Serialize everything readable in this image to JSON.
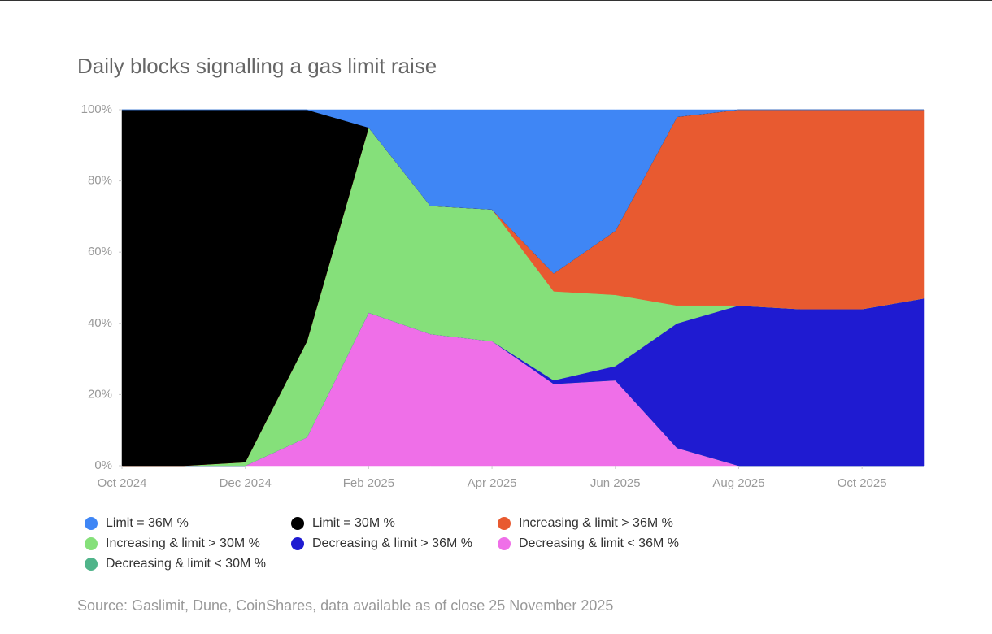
{
  "chart_data": {
    "type": "stacked_area",
    "title": "Daily blocks signalling a gas limit raise",
    "source": "Source: Gaslimit, Dune, CoinShares, data available as of close 25 November 2025",
    "x": [
      "2024-10",
      "2024-11",
      "2024-12",
      "2025-01",
      "2025-02",
      "2025-03",
      "2025-04",
      "2025-05",
      "2025-06",
      "2025-07",
      "2025-08",
      "2025-09",
      "2025-10",
      "2025-11"
    ],
    "xlim": [
      "2024-10",
      "2025-11"
    ],
    "xticks": [
      {
        "value": "2024-10",
        "label": "Oct 2024"
      },
      {
        "value": "2024-12",
        "label": "Dec 2024"
      },
      {
        "value": "2025-02",
        "label": "Feb 2025"
      },
      {
        "value": "2025-04",
        "label": "Apr 2025"
      },
      {
        "value": "2025-06",
        "label": "Jun 2025"
      },
      {
        "value": "2025-08",
        "label": "Aug 2025"
      },
      {
        "value": "2025-10",
        "label": "Oct 2025"
      }
    ],
    "ylim": [
      0,
      100
    ],
    "yticks": [
      {
        "value": 0,
        "label": "0%"
      },
      {
        "value": 20,
        "label": "20%"
      },
      {
        "value": 40,
        "label": "40%"
      },
      {
        "value": 60,
        "label": "60%"
      },
      {
        "value": 80,
        "label": "80%"
      },
      {
        "value": 100,
        "label": "100%"
      }
    ],
    "series": [
      {
        "name": "Decreasing & limit < 36M %",
        "color": "#ef6fe8",
        "values": [
          0,
          0,
          0,
          8,
          43,
          37,
          35,
          23,
          24,
          5,
          0,
          0,
          0,
          0
        ]
      },
      {
        "name": "Decreasing & limit < 30M %",
        "color": "#50b48a",
        "values": [
          0,
          0,
          0,
          0,
          0,
          0,
          0,
          0,
          0,
          0,
          0,
          0,
          0,
          0
        ]
      },
      {
        "name": "Decreasing & limit > 36M %",
        "color": "#1f1bd1",
        "values": [
          0,
          0,
          0,
          0,
          0,
          0,
          0,
          1,
          4,
          35,
          45,
          44,
          44,
          47
        ]
      },
      {
        "name": "Increasing & limit > 30M %",
        "color": "#85e07a",
        "values": [
          0,
          0,
          1,
          27,
          52,
          36,
          37,
          25,
          20,
          5,
          0,
          0,
          0,
          0
        ]
      },
      {
        "name": "Increasing & limit > 36M %",
        "color": "#e85a30",
        "values": [
          0,
          0,
          0,
          0,
          0,
          0,
          0,
          5,
          18,
          53,
          55,
          56,
          56,
          53
        ]
      },
      {
        "name": "Limit = 30M %",
        "color": "#000000",
        "values": [
          100,
          100,
          99,
          65,
          0,
          0,
          0,
          0,
          0,
          0,
          0,
          0,
          0,
          0
        ]
      },
      {
        "name": "Limit = 36M %",
        "color": "#3f86f5",
        "values": [
          0,
          0,
          0,
          0,
          5,
          27,
          28,
          46,
          34,
          2,
          0,
          0,
          0,
          0
        ]
      }
    ]
  }
}
